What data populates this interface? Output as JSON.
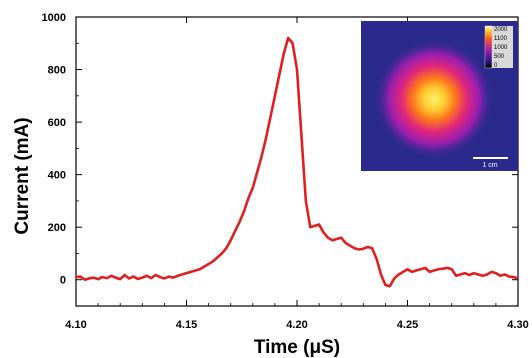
{
  "chart_data": {
    "type": "line",
    "xlabel": "Time (μS)",
    "ylabel": "Current (mA)",
    "xlim": [
      4.1,
      4.3
    ],
    "ylim": [
      -100,
      1000
    ],
    "x_ticks": [
      "4.10",
      "4.15",
      "4.20",
      "4.25",
      "4.30"
    ],
    "y_ticks": [
      "0",
      "200",
      "400",
      "600",
      "800",
      "1000"
    ],
    "grid": false,
    "series": [
      {
        "color": "#e02020",
        "x": [
          4.1,
          4.102,
          4.104,
          4.106,
          4.108,
          4.11,
          4.112,
          4.114,
          4.116,
          4.118,
          4.12,
          4.122,
          4.124,
          4.126,
          4.128,
          4.13,
          4.132,
          4.134,
          4.136,
          4.138,
          4.14,
          4.142,
          4.144,
          4.146,
          4.148,
          4.15,
          4.152,
          4.154,
          4.156,
          4.158,
          4.16,
          4.162,
          4.164,
          4.166,
          4.168,
          4.17,
          4.172,
          4.174,
          4.176,
          4.178,
          4.18,
          4.182,
          4.184,
          4.186,
          4.188,
          4.19,
          4.192,
          4.194,
          4.196,
          4.198,
          4.2,
          4.202,
          4.204,
          4.206,
          4.208,
          4.21,
          4.212,
          4.214,
          4.216,
          4.218,
          4.22,
          4.222,
          4.224,
          4.226,
          4.228,
          4.23,
          4.232,
          4.234,
          4.236,
          4.238,
          4.24,
          4.242,
          4.244,
          4.246,
          4.248,
          4.25,
          4.252,
          4.254,
          4.256,
          4.258,
          4.26,
          4.262,
          4.264,
          4.266,
          4.268,
          4.27,
          4.272,
          4.274,
          4.276,
          4.278,
          4.28,
          4.282,
          4.284,
          4.286,
          4.288,
          4.29,
          4.292,
          4.294,
          4.296,
          4.298,
          4.3
        ],
        "y": [
          10,
          12,
          0,
          5,
          8,
          2,
          10,
          6,
          15,
          8,
          2,
          18,
          5,
          12,
          3,
          8,
          15,
          6,
          18,
          10,
          5,
          12,
          8,
          15,
          20,
          25,
          30,
          35,
          40,
          50,
          60,
          70,
          85,
          100,
          120,
          150,
          185,
          220,
          260,
          310,
          350,
          410,
          470,
          540,
          620,
          700,
          780,
          860,
          920,
          900,
          800,
          550,
          300,
          200,
          205,
          210,
          180,
          160,
          150,
          155,
          160,
          140,
          130,
          120,
          115,
          118,
          125,
          120,
          80,
          20,
          -20,
          -25,
          5,
          20,
          30,
          40,
          30,
          35,
          40,
          45,
          30,
          35,
          40,
          42,
          45,
          40,
          15,
          20,
          25,
          18,
          25,
          20,
          15,
          20,
          30,
          25,
          15,
          20,
          12,
          10,
          5
        ]
      }
    ],
    "inset": {
      "colorbar_labels": [
        "2000",
        "1100",
        "1000",
        "500",
        "0"
      ],
      "scale_bar_label": "1 cm"
    }
  },
  "colors": {
    "trace": "#e02020",
    "axis": "#000000",
    "inset_bg": "#2a2a8c"
  }
}
